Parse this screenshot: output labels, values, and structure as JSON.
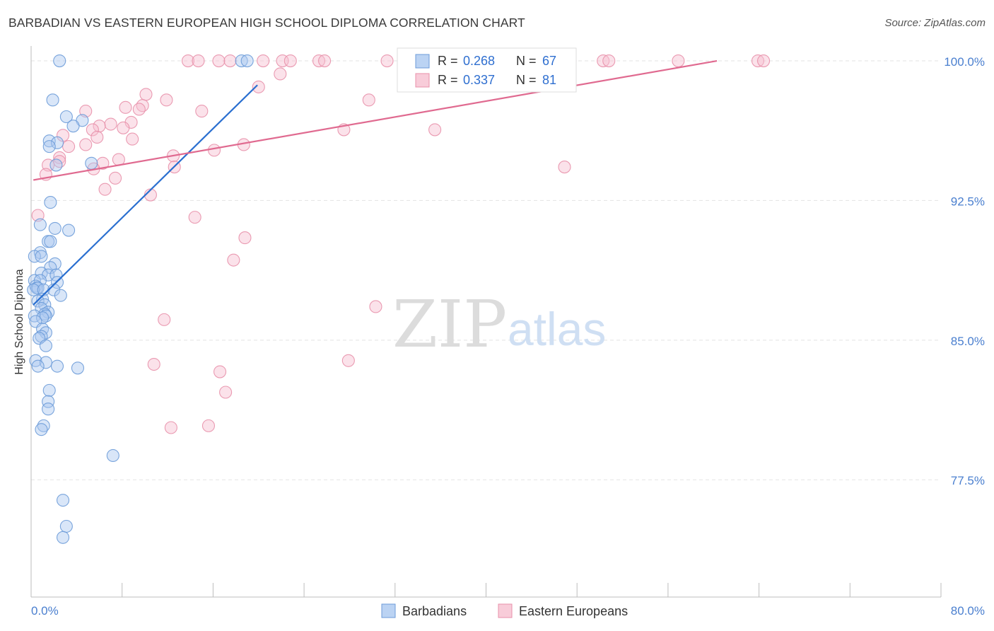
{
  "title": "BARBADIAN VS EASTERN EUROPEAN HIGH SCHOOL DIPLOMA CORRELATION CHART",
  "source": "Source: ZipAtlas.com",
  "watermark": {
    "zip": "ZIP",
    "atlas": "atlas"
  },
  "chart_data": {
    "type": "scatter",
    "title": "BARBADIAN VS EASTERN EUROPEAN HIGH SCHOOL DIPLOMA CORRELATION CHART",
    "ylabel": "High School Diploma",
    "xlabel": "",
    "xlim": [
      0,
      80
    ],
    "ylim": [
      71.2,
      100.8
    ],
    "x_tick_labels": {
      "min": "0.0%",
      "max": "80.0%"
    },
    "y_ticks": [
      {
        "value": 100.0,
        "label": "100.0%"
      },
      {
        "value": 92.5,
        "label": "92.5%"
      },
      {
        "value": 85.0,
        "label": "85.0%"
      },
      {
        "value": 77.5,
        "label": "77.5%"
      }
    ],
    "legend_position": "top-center",
    "series": [
      {
        "name": "Barbadians",
        "color": "#6c9bd8",
        "fill": "#aac8f0",
        "line_color": "#2a6fd0",
        "R": "0.268",
        "N": "67",
        "trend": {
          "x": [
            0.2,
            19.9
          ],
          "y": [
            86.9,
            98.7
          ]
        },
        "points": [
          [
            2.5,
            100.0
          ],
          [
            18.5,
            100.0
          ],
          [
            19.0,
            100.0
          ],
          [
            1.9,
            97.9
          ],
          [
            3.1,
            97.0
          ],
          [
            4.5,
            96.8
          ],
          [
            3.7,
            96.5
          ],
          [
            1.6,
            95.7
          ],
          [
            2.3,
            95.6
          ],
          [
            1.6,
            95.4
          ],
          [
            5.3,
            94.5
          ],
          [
            2.2,
            94.4
          ],
          [
            1.7,
            92.4
          ],
          [
            0.8,
            91.2
          ],
          [
            2.1,
            91.0
          ],
          [
            3.3,
            90.9
          ],
          [
            1.5,
            90.3
          ],
          [
            1.7,
            90.3
          ],
          [
            0.8,
            89.7
          ],
          [
            0.3,
            89.5
          ],
          [
            0.9,
            89.5
          ],
          [
            2.1,
            89.1
          ],
          [
            1.7,
            88.9
          ],
          [
            0.9,
            88.6
          ],
          [
            1.5,
            88.5
          ],
          [
            2.2,
            88.5
          ],
          [
            0.3,
            88.2
          ],
          [
            0.8,
            88.2
          ],
          [
            2.3,
            88.1
          ],
          [
            0.4,
            87.9
          ],
          [
            0.5,
            87.8
          ],
          [
            0.6,
            87.8
          ],
          [
            0.2,
            87.7
          ],
          [
            1.1,
            87.7
          ],
          [
            2.0,
            87.7
          ],
          [
            2.6,
            87.4
          ],
          [
            1.0,
            87.2
          ],
          [
            0.6,
            87.1
          ],
          [
            1.2,
            86.9
          ],
          [
            0.9,
            86.7
          ],
          [
            1.5,
            86.5
          ],
          [
            1.2,
            86.4
          ],
          [
            0.3,
            86.3
          ],
          [
            1.3,
            86.3
          ],
          [
            1.0,
            86.2
          ],
          [
            0.4,
            86.0
          ],
          [
            1.0,
            85.6
          ],
          [
            1.3,
            85.4
          ],
          [
            0.9,
            85.2
          ],
          [
            0.7,
            85.1
          ],
          [
            1.3,
            84.7
          ],
          [
            0.4,
            83.9
          ],
          [
            1.3,
            83.8
          ],
          [
            0.6,
            83.6
          ],
          [
            2.3,
            83.6
          ],
          [
            4.1,
            83.5
          ],
          [
            1.6,
            82.3
          ],
          [
            1.5,
            81.7
          ],
          [
            1.5,
            81.3
          ],
          [
            1.1,
            80.4
          ],
          [
            0.9,
            80.2
          ],
          [
            7.2,
            78.8
          ],
          [
            2.8,
            76.4
          ],
          [
            3.1,
            75.0
          ],
          [
            2.8,
            74.4
          ]
        ]
      },
      {
        "name": "Eastern Europeans",
        "color": "#e890aa",
        "fill": "#f6bfd0",
        "line_color": "#e06a90",
        "R": "0.337",
        "N": "81",
        "trend": {
          "x": [
            0.2,
            60.3
          ],
          "y": [
            93.6,
            100.0
          ]
        },
        "points": [
          [
            13.8,
            100.0
          ],
          [
            14.7,
            100.0
          ],
          [
            16.5,
            100.0
          ],
          [
            17.5,
            100.0
          ],
          [
            20.4,
            100.0
          ],
          [
            22.1,
            100.0
          ],
          [
            22.8,
            100.0
          ],
          [
            25.3,
            100.0
          ],
          [
            25.8,
            100.0
          ],
          [
            31.3,
            100.0
          ],
          [
            33.8,
            100.0
          ],
          [
            34.2,
            100.0
          ],
          [
            35.3,
            100.0
          ],
          [
            37.9,
            100.0
          ],
          [
            39.2,
            100.0
          ],
          [
            47.4,
            100.0
          ],
          [
            50.3,
            100.0
          ],
          [
            50.8,
            100.0
          ],
          [
            56.9,
            100.0
          ],
          [
            63.9,
            100.0
          ],
          [
            64.4,
            100.0
          ],
          [
            21.9,
            99.3
          ],
          [
            20.0,
            98.6
          ],
          [
            10.1,
            98.2
          ],
          [
            11.9,
            97.9
          ],
          [
            29.7,
            97.9
          ],
          [
            9.8,
            97.6
          ],
          [
            8.3,
            97.5
          ],
          [
            9.5,
            97.4
          ],
          [
            15.0,
            97.3
          ],
          [
            4.8,
            97.3
          ],
          [
            8.8,
            96.7
          ],
          [
            7.0,
            96.6
          ],
          [
            6.0,
            96.5
          ],
          [
            8.1,
            96.4
          ],
          [
            5.4,
            96.3
          ],
          [
            27.5,
            96.3
          ],
          [
            35.5,
            96.3
          ],
          [
            2.8,
            96.0
          ],
          [
            5.8,
            95.9
          ],
          [
            8.9,
            95.8
          ],
          [
            4.8,
            95.5
          ],
          [
            18.7,
            95.5
          ],
          [
            3.3,
            95.4
          ],
          [
            16.1,
            95.2
          ],
          [
            12.5,
            94.9
          ],
          [
            2.5,
            94.8
          ],
          [
            7.7,
            94.7
          ],
          [
            2.5,
            94.6
          ],
          [
            6.3,
            94.5
          ],
          [
            1.5,
            94.4
          ],
          [
            5.5,
            94.2
          ],
          [
            46.9,
            94.3
          ],
          [
            12.6,
            94.3
          ],
          [
            1.3,
            93.9
          ],
          [
            7.4,
            93.7
          ],
          [
            6.5,
            93.1
          ],
          [
            10.5,
            92.8
          ],
          [
            0.6,
            91.7
          ],
          [
            14.4,
            91.6
          ],
          [
            18.8,
            90.5
          ],
          [
            17.8,
            89.3
          ],
          [
            30.3,
            86.8
          ],
          [
            11.7,
            86.1
          ],
          [
            27.9,
            83.9
          ],
          [
            10.8,
            83.7
          ],
          [
            16.6,
            83.3
          ],
          [
            17.1,
            82.2
          ],
          [
            12.3,
            80.3
          ],
          [
            15.6,
            80.4
          ]
        ]
      }
    ]
  }
}
